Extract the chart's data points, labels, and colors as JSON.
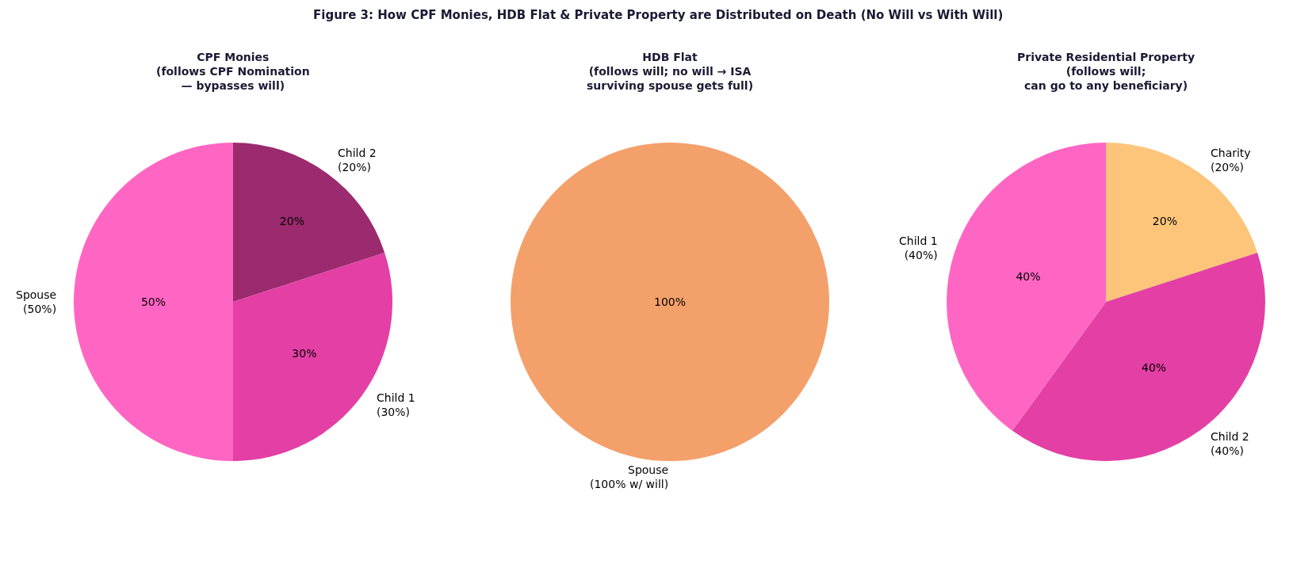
{
  "chart_data": [
    {
      "type": "other",
      "title": "Figure 3: How CPF Monies, HDB Flat & Private Property are Distributed on Death (No Will vs With Will)"
    },
    {
      "type": "pie",
      "title": "CPF Monies\n(follows CPF Nomination\n— bypasses will)",
      "categories": [
        "Spouse\n(50%)",
        "Child 1\n(30%)",
        "Child 2\n(20%)"
      ],
      "values": [
        50,
        30,
        20
      ],
      "colors": [
        "#ff66c4",
        "#e33fa4",
        "#9b2a6e"
      ],
      "value_labels": [
        "50%",
        "30%",
        "20%"
      ]
    },
    {
      "type": "pie",
      "title": "HDB Flat\n(follows will; no will → ISA\nsurviving spouse gets full)",
      "categories": [
        "Spouse\n(100% w/ will)"
      ],
      "values": [
        100
      ],
      "colors": [
        "#f4a06b"
      ],
      "value_labels": [
        "100%"
      ]
    },
    {
      "type": "pie",
      "title": "Private Residential Property\n(follows will;\ncan go to any beneficiary)",
      "categories": [
        "Child 1\n(40%)",
        "Child 2\n(40%)",
        "Charity\n(20%)"
      ],
      "values": [
        40,
        40,
        20
      ],
      "colors": [
        "#ff66c4",
        "#e33fa4",
        "#fcc57a"
      ],
      "value_labels": [
        "40%",
        "40%",
        "20%"
      ]
    }
  ]
}
